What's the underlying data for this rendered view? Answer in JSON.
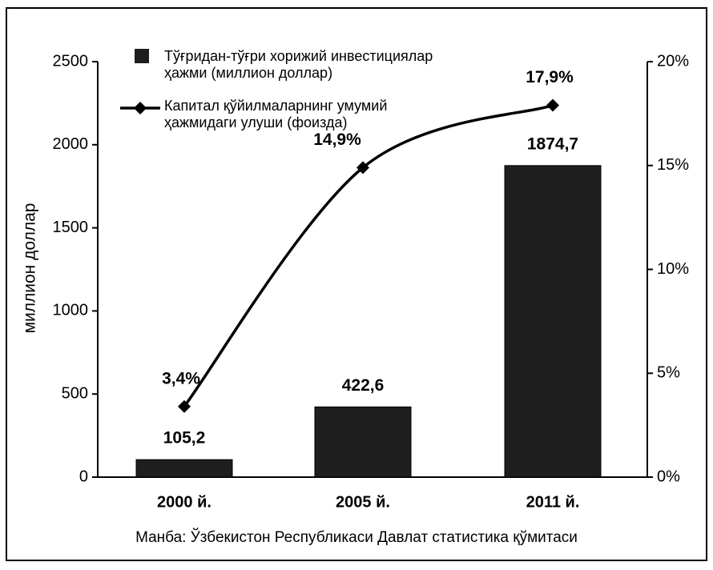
{
  "chart_data": {
    "type": "bar",
    "categories": [
      "2000 й.",
      "2005 й.",
      "2011 й."
    ],
    "ylabel": "миллион доллар",
    "ylim": [
      0,
      2500
    ],
    "yticks": [
      0,
      500,
      1000,
      1500,
      2000,
      2500
    ],
    "y2lim": [
      0,
      20
    ],
    "y2ticks": [
      {
        "value": 0,
        "label": "0%"
      },
      {
        "value": 5,
        "label": "5%"
      },
      {
        "value": 10,
        "label": "10%"
      },
      {
        "value": 15,
        "label": "15%"
      },
      {
        "value": 20,
        "label": "20%"
      }
    ],
    "series": [
      {
        "name": "Тўғридан-тўғри хорижий инвестициялар ҳажми (миллион доллар)",
        "type": "bar",
        "color": "#1e1e1e",
        "values": [
          105.2,
          422.6,
          1874.7
        ],
        "value_labels": [
          "105,2",
          "422,6",
          "1874,7"
        ]
      },
      {
        "name": "Капитал қўйилмаларнинг умумий ҳажмидаги улуши (фоизда)",
        "type": "line",
        "axis": "y2",
        "color": "#000000",
        "values": [
          3.4,
          14.9,
          17.9
        ],
        "value_labels": [
          "3,4%",
          "14,9%",
          "17,9%"
        ]
      }
    ],
    "source": "Манба: Ўзбекистон Республикаси Давлат статистика қўмитаси"
  }
}
